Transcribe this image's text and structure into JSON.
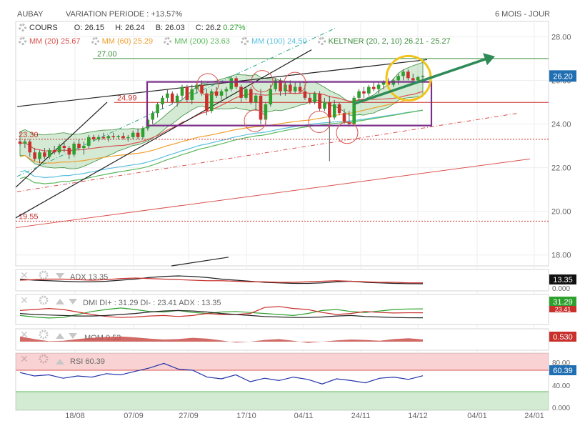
{
  "header": {
    "ticker": "AUBAY",
    "variation_label": "VARIATION PERIODE : +13.57%",
    "period": "6 MOIS - JOUR"
  },
  "quote": {
    "cours_label": "COURS",
    "o": "O: 26.15",
    "h": "H: 26.24",
    "b": "B: 26.03",
    "c": "C: 26.2",
    "change": "0.27%"
  },
  "indicators_legend": [
    {
      "label": "MM (20)",
      "value": "25.67",
      "color": "#d9534f"
    },
    {
      "label": "MM (60)",
      "value": "25.29",
      "color": "#f0a030"
    },
    {
      "label": "MM (200)",
      "value": "23.63",
      "color": "#5cb85c"
    },
    {
      "label": "MM (100)",
      "value": "24.50",
      "color": "#5bc0de"
    },
    {
      "label": "KELTNER (20, 2, 10)",
      "value": "26.21 - 25.27",
      "color": "#3c8d3c"
    }
  ],
  "colors": {
    "up": "#2ea02e",
    "down": "#c9302c",
    "keltner": "#3c8d3c",
    "annotation_line": "#2e8b57",
    "highlight_circle": "#f0c419",
    "channel_box": "#7b2d8b",
    "resistance": "#c9302c",
    "price_badge": "#1f6fb2",
    "rsi_badge": "#1f6fb2"
  },
  "chart_data": [
    {
      "type": "line",
      "name": "price",
      "ylim": [
        17.5,
        28.7
      ],
      "y_ticks": [
        "28.00",
        "26.00",
        "24.00",
        "22.00",
        "20.00",
        "18.00"
      ],
      "x_ticks": [
        "18/08",
        "07/09",
        "27/09",
        "17/10",
        "04/11",
        "24/11",
        "14/12",
        "04/01",
        "24/01"
      ],
      "current_price": "26.20",
      "levels": [
        {
          "label": "27.00",
          "value": 27.0
        },
        {
          "label": "24.99",
          "value": 24.99
        },
        {
          "label": "23.30",
          "value": 23.3
        },
        {
          "label": "19.55",
          "value": 19.55
        }
      ],
      "candles": [
        {
          "x": 0,
          "o": 23.2,
          "h": 23.35,
          "l": 23.0,
          "c": 23.1
        },
        {
          "x": 1,
          "o": 23.1,
          "h": 23.3,
          "l": 22.9,
          "c": 23.2
        },
        {
          "x": 2,
          "o": 23.2,
          "h": 23.3,
          "l": 22.5,
          "c": 22.7
        },
        {
          "x": 3,
          "o": 22.7,
          "h": 22.9,
          "l": 22.3,
          "c": 22.4
        },
        {
          "x": 4,
          "o": 22.4,
          "h": 22.8,
          "l": 22.2,
          "c": 22.7
        },
        {
          "x": 5,
          "o": 22.7,
          "h": 22.9,
          "l": 22.4,
          "c": 22.5
        },
        {
          "x": 6,
          "o": 22.5,
          "h": 22.9,
          "l": 22.4,
          "c": 22.8
        },
        {
          "x": 7,
          "o": 22.8,
          "h": 23.0,
          "l": 22.6,
          "c": 22.7
        },
        {
          "x": 8,
          "o": 22.7,
          "h": 23.1,
          "l": 22.6,
          "c": 23.0
        },
        {
          "x": 9,
          "o": 23.0,
          "h": 23.2,
          "l": 22.7,
          "c": 22.9
        },
        {
          "x": 10,
          "o": 22.9,
          "h": 23.0,
          "l": 22.4,
          "c": 22.6
        },
        {
          "x": 11,
          "o": 22.6,
          "h": 23.2,
          "l": 22.5,
          "c": 23.1
        },
        {
          "x": 12,
          "o": 23.1,
          "h": 23.3,
          "l": 22.8,
          "c": 22.9
        },
        {
          "x": 13,
          "o": 22.9,
          "h": 23.2,
          "l": 22.6,
          "c": 23.0
        },
        {
          "x": 14,
          "o": 23.0,
          "h": 23.5,
          "l": 22.9,
          "c": 23.4
        },
        {
          "x": 15,
          "o": 23.4,
          "h": 23.5,
          "l": 23.2,
          "c": 23.3
        },
        {
          "x": 16,
          "o": 23.3,
          "h": 23.5,
          "l": 23.2,
          "c": 23.4
        },
        {
          "x": 17,
          "o": 23.4,
          "h": 23.6,
          "l": 23.3,
          "c": 23.35
        },
        {
          "x": 18,
          "o": 23.35,
          "h": 23.5,
          "l": 23.2,
          "c": 23.45
        },
        {
          "x": 19,
          "o": 23.45,
          "h": 23.6,
          "l": 23.3,
          "c": 23.4
        },
        {
          "x": 20,
          "o": 23.4,
          "h": 23.5,
          "l": 23.3,
          "c": 23.45
        },
        {
          "x": 21,
          "o": 23.45,
          "h": 23.6,
          "l": 23.3,
          "c": 23.35
        },
        {
          "x": 22,
          "o": 23.35,
          "h": 23.5,
          "l": 23.2,
          "c": 23.4
        },
        {
          "x": 23,
          "o": 23.4,
          "h": 23.7,
          "l": 23.3,
          "c": 23.6
        },
        {
          "x": 24,
          "o": 23.6,
          "h": 23.8,
          "l": 23.3,
          "c": 23.4
        },
        {
          "x": 25,
          "o": 23.4,
          "h": 23.9,
          "l": 23.3,
          "c": 23.8
        },
        {
          "x": 26,
          "o": 23.8,
          "h": 24.3,
          "l": 23.7,
          "c": 24.2
        },
        {
          "x": 27,
          "o": 24.2,
          "h": 24.6,
          "l": 24.0,
          "c": 24.5
        },
        {
          "x": 28,
          "o": 24.5,
          "h": 25.0,
          "l": 24.3,
          "c": 24.9
        },
        {
          "x": 29,
          "o": 24.9,
          "h": 25.3,
          "l": 24.7,
          "c": 25.2
        },
        {
          "x": 30,
          "o": 25.2,
          "h": 25.6,
          "l": 25.0,
          "c": 25.4
        },
        {
          "x": 31,
          "o": 25.4,
          "h": 25.5,
          "l": 24.9,
          "c": 25.0
        },
        {
          "x": 32,
          "o": 25.0,
          "h": 25.4,
          "l": 24.8,
          "c": 25.3
        },
        {
          "x": 33,
          "o": 25.3,
          "h": 25.8,
          "l": 25.1,
          "c": 25.7
        },
        {
          "x": 34,
          "o": 25.7,
          "h": 25.8,
          "l": 25.0,
          "c": 25.1
        },
        {
          "x": 35,
          "o": 25.1,
          "h": 25.8,
          "l": 24.9,
          "c": 25.6
        },
        {
          "x": 36,
          "o": 25.6,
          "h": 25.9,
          "l": 25.4,
          "c": 25.8
        },
        {
          "x": 37,
          "o": 25.8,
          "h": 26.0,
          "l": 25.3,
          "c": 25.4
        },
        {
          "x": 38,
          "o": 25.4,
          "h": 25.6,
          "l": 24.4,
          "c": 24.6
        },
        {
          "x": 39,
          "o": 24.6,
          "h": 25.6,
          "l": 24.5,
          "c": 25.5
        },
        {
          "x": 40,
          "o": 25.5,
          "h": 25.7,
          "l": 25.2,
          "c": 25.3
        },
        {
          "x": 41,
          "o": 25.3,
          "h": 25.6,
          "l": 25.1,
          "c": 25.5
        },
        {
          "x": 42,
          "o": 25.5,
          "h": 25.7,
          "l": 25.2,
          "c": 25.6
        },
        {
          "x": 43,
          "o": 25.6,
          "h": 26.2,
          "l": 25.5,
          "c": 26.1
        },
        {
          "x": 44,
          "o": 26.1,
          "h": 26.2,
          "l": 25.6,
          "c": 25.7
        },
        {
          "x": 45,
          "o": 25.7,
          "h": 25.8,
          "l": 25.0,
          "c": 25.2
        },
        {
          "x": 46,
          "o": 25.2,
          "h": 25.7,
          "l": 25.1,
          "c": 25.6
        },
        {
          "x": 47,
          "o": 25.6,
          "h": 25.7,
          "l": 24.9,
          "c": 25.0
        },
        {
          "x": 48,
          "o": 25.0,
          "h": 25.4,
          "l": 24.6,
          "c": 25.3
        },
        {
          "x": 49,
          "o": 25.3,
          "h": 25.6,
          "l": 24.0,
          "c": 24.2
        },
        {
          "x": 50,
          "o": 24.2,
          "h": 25.0,
          "l": 24.0,
          "c": 24.9
        },
        {
          "x": 51,
          "o": 24.9,
          "h": 25.8,
          "l": 24.8,
          "c": 25.6
        },
        {
          "x": 52,
          "o": 25.6,
          "h": 26.1,
          "l": 25.5,
          "c": 26.0
        },
        {
          "x": 53,
          "o": 26.0,
          "h": 26.1,
          "l": 25.3,
          "c": 25.5
        },
        {
          "x": 54,
          "o": 25.5,
          "h": 25.9,
          "l": 25.3,
          "c": 25.8
        },
        {
          "x": 55,
          "o": 25.8,
          "h": 26.0,
          "l": 25.4,
          "c": 25.5
        },
        {
          "x": 56,
          "o": 25.5,
          "h": 25.9,
          "l": 25.4,
          "c": 25.7
        },
        {
          "x": 57,
          "o": 25.7,
          "h": 25.9,
          "l": 25.4,
          "c": 25.5
        },
        {
          "x": 58,
          "o": 25.5,
          "h": 25.8,
          "l": 25.1,
          "c": 25.2
        },
        {
          "x": 59,
          "o": 25.2,
          "h": 25.4,
          "l": 24.9,
          "c": 25.0
        },
        {
          "x": 60,
          "o": 25.0,
          "h": 25.5,
          "l": 24.9,
          "c": 25.4
        },
        {
          "x": 61,
          "o": 25.4,
          "h": 25.5,
          "l": 24.6,
          "c": 24.7
        },
        {
          "x": 62,
          "o": 24.7,
          "h": 25.2,
          "l": 24.6,
          "c": 25.0
        },
        {
          "x": 63,
          "o": 25.0,
          "h": 25.3,
          "l": 22.3,
          "c": 24.3
        },
        {
          "x": 64,
          "o": 24.3,
          "h": 25.1,
          "l": 24.2,
          "c": 24.9
        },
        {
          "x": 65,
          "o": 24.9,
          "h": 25.0,
          "l": 24.4,
          "c": 24.5
        },
        {
          "x": 66,
          "o": 24.5,
          "h": 24.7,
          "l": 24.0,
          "c": 24.1
        },
        {
          "x": 67,
          "o": 24.1,
          "h": 24.6,
          "l": 23.9,
          "c": 24.0
        },
        {
          "x": 68,
          "o": 24.0,
          "h": 25.3,
          "l": 23.9,
          "c": 25.2
        },
        {
          "x": 69,
          "o": 25.2,
          "h": 25.6,
          "l": 25.0,
          "c": 25.5
        },
        {
          "x": 70,
          "o": 25.5,
          "h": 25.7,
          "l": 25.2,
          "c": 25.4
        },
        {
          "x": 71,
          "o": 25.4,
          "h": 25.8,
          "l": 25.3,
          "c": 25.7
        },
        {
          "x": 72,
          "o": 25.7,
          "h": 25.9,
          "l": 25.5,
          "c": 25.6
        },
        {
          "x": 73,
          "o": 25.6,
          "h": 25.9,
          "l": 25.4,
          "c": 25.8
        },
        {
          "x": 74,
          "o": 25.8,
          "h": 26.0,
          "l": 25.6,
          "c": 25.9
        },
        {
          "x": 75,
          "o": 25.9,
          "h": 26.1,
          "l": 25.7,
          "c": 25.8
        },
        {
          "x": 76,
          "o": 25.8,
          "h": 26.1,
          "l": 25.7,
          "c": 26.0
        },
        {
          "x": 77,
          "o": 26.0,
          "h": 26.3,
          "l": 25.8,
          "c": 26.2
        },
        {
          "x": 78,
          "o": 26.2,
          "h": 26.5,
          "l": 26.0,
          "c": 26.4
        },
        {
          "x": 79,
          "o": 26.4,
          "h": 26.5,
          "l": 26.0,
          "c": 26.1
        },
        {
          "x": 80,
          "o": 26.1,
          "h": 26.3,
          "l": 25.9,
          "c": 26.0
        },
        {
          "x": 81,
          "o": 26.0,
          "h": 26.2,
          "l": 25.9,
          "c": 26.15
        },
        {
          "x": 82,
          "o": 26.15,
          "h": 26.24,
          "l": 26.03,
          "c": 26.2
        }
      ]
    },
    {
      "type": "line",
      "name": "ADX",
      "label": "ADX",
      "value": "13.35",
      "ylim": [
        0,
        40
      ],
      "y_tick": "0.000",
      "series": [
        {
          "color": "#222222",
          "values": [
            22,
            20,
            19,
            18,
            17,
            17,
            18,
            20,
            22,
            25,
            27,
            28,
            27,
            25,
            22,
            20,
            18,
            16,
            15,
            14,
            14,
            15,
            17,
            18,
            16,
            15,
            14,
            13.5,
            13.35
          ]
        },
        {
          "color": "#c9302c",
          "values": [
            20,
            21,
            22,
            22,
            21,
            20,
            21,
            23,
            24,
            23,
            22,
            21,
            20,
            19,
            19,
            18,
            17,
            17,
            16,
            16,
            17,
            18,
            19,
            18,
            17,
            16,
            16,
            15,
            15
          ]
        }
      ]
    },
    {
      "type": "line",
      "name": "DMI",
      "label": "DMI DI+ : 31.29 DI- : 23.41 ADX : 13.35",
      "values": [
        "31.29",
        "23.41"
      ],
      "ylim": [
        0,
        60
      ],
      "series": [
        {
          "name": "DI+",
          "color": "#2ea02e",
          "values": [
            18,
            15,
            13,
            14,
            20,
            26,
            30,
            33,
            30,
            26,
            25,
            28,
            24,
            22,
            25,
            26,
            24,
            22,
            20,
            18,
            22,
            28,
            30,
            26,
            24,
            27,
            30,
            31,
            31.29
          ]
        },
        {
          "name": "DI-",
          "color": "#c9302c",
          "values": [
            28,
            30,
            32,
            30,
            25,
            20,
            16,
            14,
            15,
            17,
            18,
            16,
            18,
            22,
            20,
            20,
            22,
            34,
            36,
            32,
            30,
            24,
            20,
            22,
            26,
            24,
            23,
            23.5,
            23.41
          ]
        },
        {
          "name": "ADX",
          "color": "#222222",
          "values": [
            22,
            20,
            19,
            18,
            17,
            17,
            18,
            20,
            22,
            25,
            27,
            28,
            27,
            25,
            22,
            20,
            18,
            16,
            15,
            14,
            14,
            15,
            17,
            18,
            16,
            15,
            14,
            13.5,
            13.35
          ]
        }
      ]
    },
    {
      "type": "area",
      "name": "MOM",
      "label": "MOM",
      "value": "0.530",
      "legend_value": "0.53",
      "ylim": [
        -2,
        2
      ],
      "values": [
        1.2,
        0.6,
        0.1,
        0.2,
        0.6,
        0.9,
        1.1,
        1.2,
        1.0,
        0.7,
        0.5,
        0.6,
        0.9,
        0.7,
        0.3,
        -0.2,
        0.0,
        0.4,
        0.6,
        0.2,
        -0.3,
        0.0,
        0.3,
        0.5,
        0.4,
        0.2,
        0.6,
        0.8,
        0.53
      ]
    },
    {
      "type": "line",
      "name": "RSI",
      "label": "RSI",
      "value": "60.39",
      "ylim": [
        0,
        100
      ],
      "y_ticks": [
        "80.00",
        "60.00",
        "40.00",
        "0.000"
      ],
      "values": [
        66,
        60,
        62,
        56,
        60,
        58,
        64,
        62,
        68,
        74,
        82,
        72,
        70,
        58,
        55,
        62,
        50,
        56,
        52,
        58,
        54,
        46,
        55,
        52,
        48,
        56,
        58,
        54,
        60.39
      ]
    }
  ]
}
